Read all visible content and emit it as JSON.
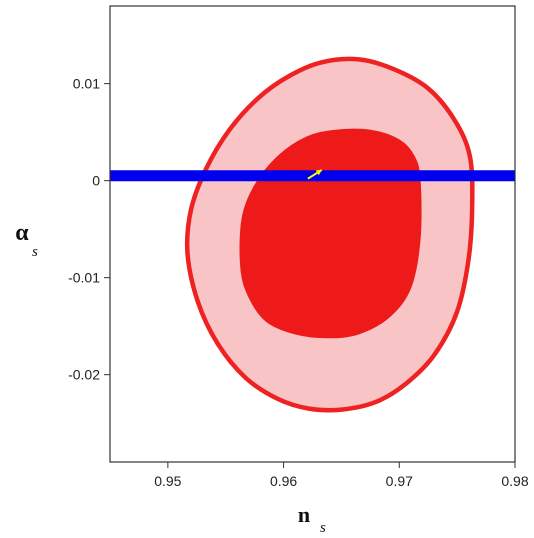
{
  "chart_data": {
    "type": "contour",
    "xlabel": {
      "symbol": "n",
      "subscript": "s"
    },
    "ylabel": {
      "symbol": "α",
      "subscript": "s"
    },
    "xlim": [
      0.945,
      0.98
    ],
    "ylim": [
      -0.029,
      0.018
    ],
    "x_ticks": [
      {
        "value": 0.95,
        "label": "0.95"
      },
      {
        "value": 0.96,
        "label": "0.96"
      },
      {
        "value": 0.97,
        "label": "0.97"
      },
      {
        "value": 0.98,
        "label": "0.98"
      }
    ],
    "y_ticks": [
      {
        "value": 0.01,
        "label": "0.01"
      },
      {
        "value": 0.0,
        "label": "0"
      },
      {
        "value": -0.01,
        "label": "-0.01"
      },
      {
        "value": -0.02,
        "label": "-0.02"
      }
    ],
    "grid": false,
    "regions": [
      {
        "level": "outer",
        "fill": "#f9c4c6",
        "stroke": "#ee2222",
        "points": [
          [
            0.9665,
            0.0125
          ],
          [
            0.9695,
            0.0115
          ],
          [
            0.9725,
            0.0095
          ],
          [
            0.9748,
            0.0062
          ],
          [
            0.9761,
            0.0025
          ],
          [
            0.9763,
            -0.0025
          ],
          [
            0.976,
            -0.008
          ],
          [
            0.975,
            -0.0135
          ],
          [
            0.973,
            -0.018
          ],
          [
            0.9705,
            -0.021
          ],
          [
            0.968,
            -0.0228
          ],
          [
            0.965,
            -0.0236
          ],
          [
            0.9622,
            -0.0235
          ],
          [
            0.9595,
            -0.0225
          ],
          [
            0.9567,
            -0.0203
          ],
          [
            0.9543,
            -0.0168
          ],
          [
            0.9526,
            -0.0125
          ],
          [
            0.9517,
            -0.0075
          ],
          [
            0.952,
            -0.003
          ],
          [
            0.9533,
            0.0012
          ],
          [
            0.9553,
            0.0052
          ],
          [
            0.9578,
            0.0085
          ],
          [
            0.9605,
            0.0108
          ],
          [
            0.9633,
            0.0122
          ]
        ]
      },
      {
        "level": "inner",
        "fill": "#ee1a1a",
        "stroke": "#ee1a1a",
        "points": [
          [
            0.9645,
            0.0052
          ],
          [
            0.9675,
            0.0052
          ],
          [
            0.97,
            0.0042
          ],
          [
            0.9713,
            0.0025
          ],
          [
            0.9718,
            0.0
          ],
          [
            0.9718,
            -0.006
          ],
          [
            0.971,
            -0.011
          ],
          [
            0.9692,
            -0.014
          ],
          [
            0.9665,
            -0.0158
          ],
          [
            0.9638,
            -0.0162
          ],
          [
            0.961,
            -0.0158
          ],
          [
            0.9585,
            -0.0145
          ],
          [
            0.957,
            -0.012
          ],
          [
            0.9563,
            -0.009
          ],
          [
            0.9564,
            -0.004
          ],
          [
            0.9575,
            -0.0005
          ],
          [
            0.9595,
            0.0025
          ],
          [
            0.962,
            0.0045
          ]
        ]
      }
    ],
    "hline": {
      "y": 0.0005,
      "x_from": 0.945,
      "x_to": 0.98,
      "color": "#0000ee"
    },
    "arrow": {
      "from": [
        0.9621,
        0.0002
      ],
      "to": [
        0.9633,
        0.0011
      ],
      "color": "#ffff00"
    }
  }
}
